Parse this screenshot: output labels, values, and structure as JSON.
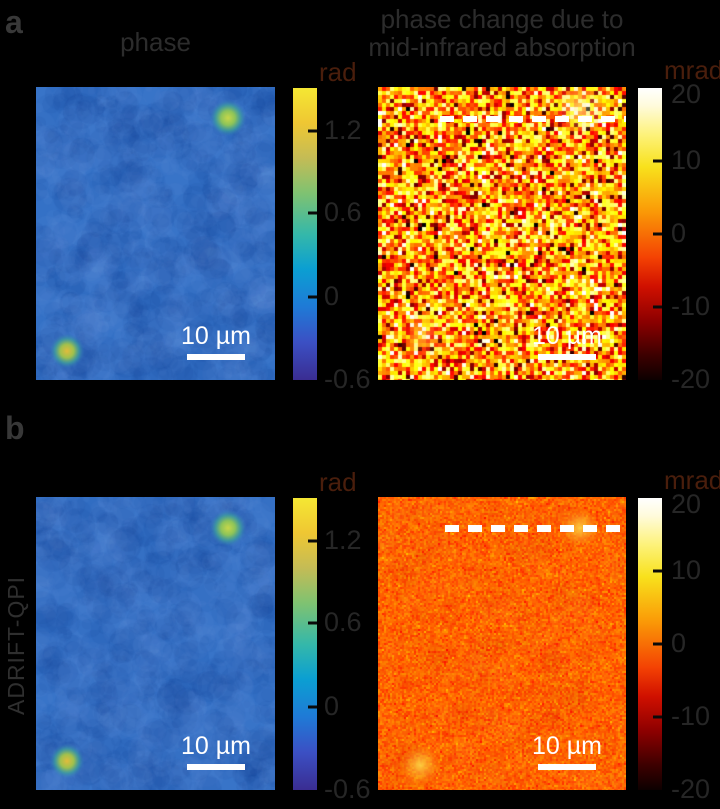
{
  "figure": {
    "panels": [
      {
        "letter": "a",
        "left": {
          "title": "phase"
        },
        "right": {
          "title_line1": "phase change due to",
          "title_line2": "mid-infrared absorption"
        }
      },
      {
        "letter": "b",
        "row_label": "ADRIFT-QPI"
      }
    ],
    "scalebar_label": "10 µm"
  },
  "colorbars": {
    "rad": {
      "unit": "rad",
      "ticks": [
        "1.2",
        "0.6",
        "0",
        "-0.6"
      ]
    },
    "mrad": {
      "unit": "mrad",
      "ticks": [
        "20",
        "10",
        "0",
        "-10",
        "-20"
      ]
    }
  },
  "colors": {
    "background": "#000000",
    "phase_image_base": "#3471c6",
    "mip_noise_mean_a": "#f07010",
    "mip_background_b": "#f2660c",
    "bead_core": "#e2bc3c",
    "title_text": "#2c2c2c",
    "tick_text": "#262626",
    "unit_text": "#4a1e0c",
    "scalebar": "#ffffff"
  },
  "chart_data": [
    {
      "type": "heatmap",
      "panel": "a",
      "position": "left",
      "title": "phase",
      "unit": "rad",
      "colormap": "parula",
      "colorbar_ticks": [
        1.2,
        0.6,
        0,
        -0.6
      ],
      "description": "Conventional QPI phase image: uniform ~0.2 rad blue background with two ~1.2 rad beads, one top-right and one bottom-left",
      "scalebar": "10 µm"
    },
    {
      "type": "heatmap",
      "panel": "a",
      "position": "right",
      "title": "phase change due to mid-infrared absorption",
      "unit": "mrad",
      "colormap": "hot",
      "colorbar_ticks": [
        20,
        10,
        0,
        -10,
        -20
      ],
      "description": "Noisy mid-infrared photothermal phase-change map (~±15 mrad pixel noise); beads barely visible; horizontal white dashed cross-section line near top passing through top-right bead",
      "scalebar": "10 µm"
    },
    {
      "type": "heatmap",
      "panel": "b",
      "position": "left",
      "row_label": "ADRIFT-QPI",
      "unit": "rad",
      "colormap": "parula",
      "colorbar_ticks": [
        1.2,
        0.6,
        0,
        -0.6
      ],
      "description": "ADRIFT-QPI phase image: same uniform blue background with two ~1.2 rad beads (top-right, bottom-left)",
      "scalebar": "10 µm"
    },
    {
      "type": "heatmap",
      "panel": "b",
      "position": "right",
      "row_label": "ADRIFT-QPI",
      "unit": "mrad",
      "colormap": "hot",
      "colorbar_ticks": [
        20,
        10,
        0,
        -10,
        -20
      ],
      "description": "Low-noise phase-change map: two bright ~15 mrad beads (top-right, bottom-left) on smooth ~2 mrad orange background; horizontal white dashed cross-section line near top",
      "scalebar": "10 µm"
    }
  ]
}
